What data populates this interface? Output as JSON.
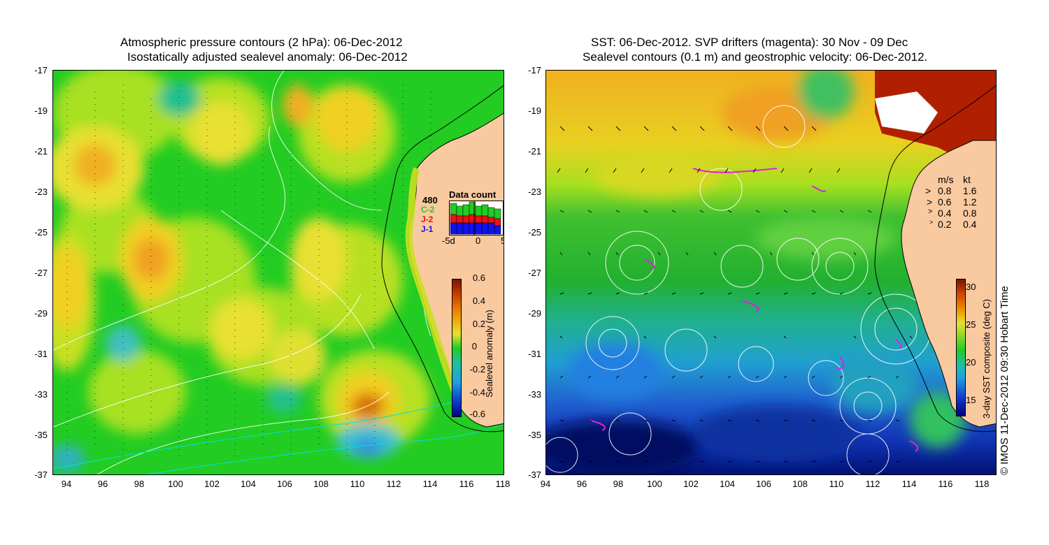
{
  "left_panel": {
    "title_line1": "Atmospheric pressure contours (2 hPa): 06-Dec-2012",
    "title_line2": "Isostatically adjusted sealevel anomaly: 06-Dec-2012",
    "y_ticks": [
      "-17",
      "-19",
      "-21",
      "-23",
      "-25",
      "-27",
      "-29",
      "-31",
      "-33",
      "-35",
      "-37"
    ],
    "x_ticks": [
      "94",
      "96",
      "98",
      "100",
      "102",
      "104",
      "106",
      "108",
      "110",
      "112",
      "114",
      "116",
      "118"
    ],
    "colorbar": {
      "label": "Sealevel anomaly (m)",
      "ticks": [
        "0.6",
        "0.4",
        "0.2",
        "0",
        "-0.2",
        "-0.4",
        "-0.6"
      ],
      "range": [
        -0.6,
        0.6
      ]
    },
    "data_count": {
      "title": "Data count",
      "max_label": "480",
      "legend": [
        {
          "label": "C-2",
          "color": "#22cc22"
        },
        {
          "label": "J-2",
          "color": "#ee1111"
        },
        {
          "label": "J-1",
          "color": "#1111ee"
        }
      ],
      "x_ticks": [
        "-5d",
        "0",
        "5"
      ]
    }
  },
  "right_panel": {
    "title_line1": "SST: 06-Dec-2012. SVP drifters (magenta): 30 Nov - 09 Dec",
    "title_line2": "Sealevel contours (0.1 m) and geostrophic velocity: 06-Dec-2012.",
    "y_ticks": [
      "-17",
      "-19",
      "-21",
      "-23",
      "-25",
      "-27",
      "-29",
      "-31",
      "-33",
      "-35",
      "-37"
    ],
    "x_ticks": [
      "94",
      "96",
      "98",
      "100",
      "102",
      "104",
      "106",
      "108",
      "110",
      "112",
      "114",
      "116",
      "118"
    ],
    "velocity_legend": {
      "header_ms": "m/s",
      "header_kt": "kt",
      "rows": [
        {
          "ms": "0.8",
          "kt": "1.6"
        },
        {
          "ms": "0.6",
          "kt": "1.2"
        },
        {
          "ms": "0.4",
          "kt": "0.8"
        },
        {
          "ms": "0.2",
          "kt": "0.4"
        }
      ]
    },
    "colorbar": {
      "label": "3-day SST composite (deg C)",
      "ticks": [
        "30",
        "25",
        "20",
        "15"
      ],
      "range": [
        13,
        31
      ]
    }
  },
  "credit": "© IMOS 11-Dec-2012 09:30 Hobart Time",
  "colors": {
    "land": "#f9c9a0",
    "drifter": "#dd22dd",
    "contour": "#ffffff"
  }
}
